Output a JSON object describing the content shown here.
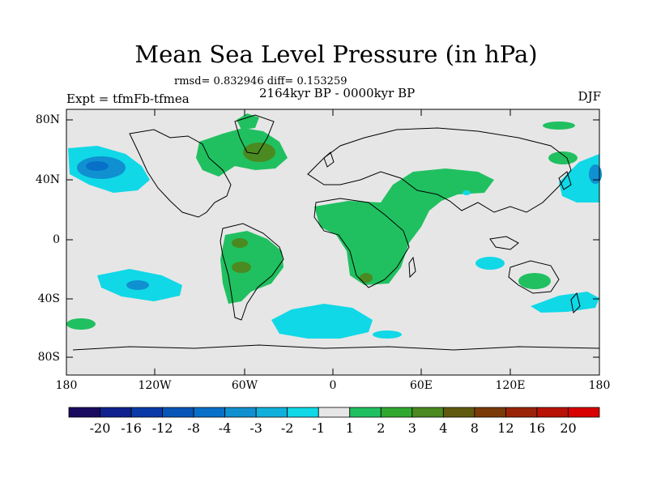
{
  "title": "Mean Sea Level Pressure (in hPa)",
  "stats": "rmsd= 0.832946 diff= 0.153259",
  "period": "2164kyr BP - 0000kyr BP",
  "experiment": "Expt = tfmFb-tfmea",
  "season": "DJF",
  "map": {
    "lat_labels": [
      "80N",
      "40N",
      "0",
      "40S",
      "80S"
    ],
    "lon_labels": [
      "180",
      "120W",
      "60W",
      "0",
      "60E",
      "120E",
      "180"
    ],
    "background_color": "#e6e6e6"
  },
  "colorbar": {
    "labels": [
      "-20",
      "-16",
      "-12",
      "-8",
      "-4",
      "-3",
      "-2",
      "-1",
      "1",
      "2",
      "3",
      "4",
      "8",
      "12",
      "16",
      "20"
    ],
    "colors": [
      "#1a0a60",
      "#10208e",
      "#0a3aa8",
      "#0855b8",
      "#0870c8",
      "#1090d0",
      "#10b0dc",
      "#10d8e6",
      "#e6e6e6",
      "#20c060",
      "#30a830",
      "#4a8a20",
      "#605a10",
      "#7a3a08",
      "#9a2408",
      "#b81206",
      "#d80000"
    ]
  }
}
